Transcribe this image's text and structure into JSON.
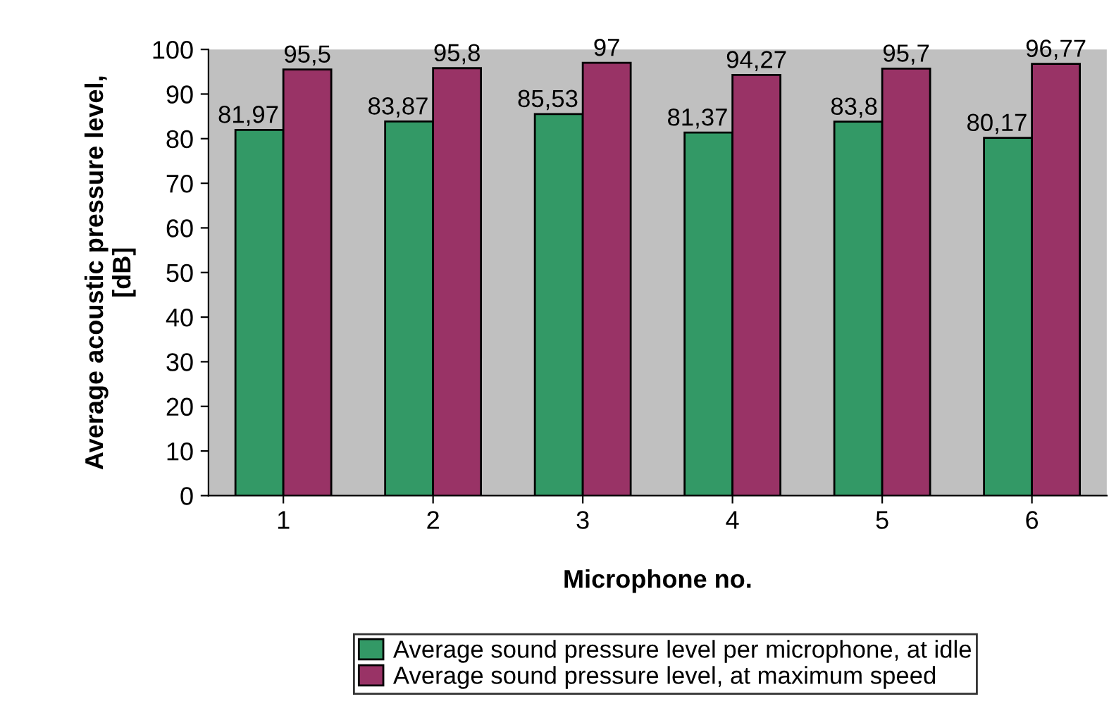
{
  "chart_data": {
    "type": "bar",
    "xlabel": "Microphone no.",
    "ylabel": "Average acoustic pressure level,\n[dB]",
    "categories": [
      "1",
      "2",
      "3",
      "4",
      "5",
      "6"
    ],
    "series": [
      {
        "name": "Average sound pressure level per microphone, at idle",
        "color": "#339966",
        "values": [
          81.97,
          83.87,
          85.53,
          81.37,
          83.8,
          80.17
        ],
        "value_labels": [
          "81,97",
          "83,87",
          "85,53",
          "81,37",
          "83,8",
          "80,17"
        ]
      },
      {
        "name": "Average sound pressure level, at maximum speed",
        "color": "#993366",
        "values": [
          95.5,
          95.8,
          97,
          94.27,
          95.7,
          96.77
        ],
        "value_labels": [
          "95,5",
          "95,8",
          "97",
          "94,27",
          "95,7",
          "96,77"
        ]
      }
    ],
    "ylim": [
      0,
      100
    ],
    "yticks": [
      0,
      10,
      20,
      30,
      40,
      50,
      60,
      70,
      80,
      90,
      100
    ],
    "grid": false,
    "legend": "bottom"
  }
}
